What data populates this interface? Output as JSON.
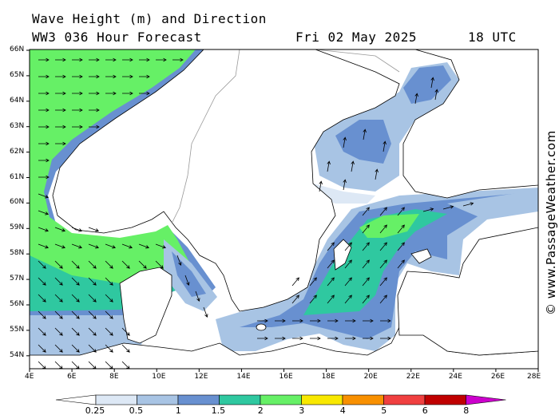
{
  "header": {
    "title": "Wave Height (m) and Direction",
    "model": "WW3 036 Hour Forecast",
    "date": "Fri 02 May 2025",
    "time": "18 UTC"
  },
  "axes": {
    "lat_labels": [
      "66N",
      "65N",
      "64N",
      "63N",
      "62N",
      "61N",
      "60N",
      "59N",
      "58N",
      "57N",
      "56N",
      "55N",
      "54N"
    ],
    "lon_labels": [
      "4E",
      "6E",
      "8E",
      "10E",
      "12E",
      "14E",
      "16E",
      "18E",
      "20E",
      "22E",
      "24E",
      "26E",
      "28E"
    ]
  },
  "legend": {
    "labels": [
      "0.25",
      "0.5",
      "1",
      "1.5",
      "2",
      "3",
      "4",
      "5",
      "6",
      "8"
    ],
    "colors": [
      "#ffffff",
      "#dde8f5",
      "#a8c4e4",
      "#6890d0",
      "#2fc8a0",
      "#66f066",
      "#f8e800",
      "#f89000",
      "#f04040",
      "#c00000",
      "#cc00cc"
    ]
  },
  "credit": "© www.PassageWeather.com",
  "colors": {
    "land": "#ffffff",
    "coast": "#000000",
    "border": "#999999"
  }
}
